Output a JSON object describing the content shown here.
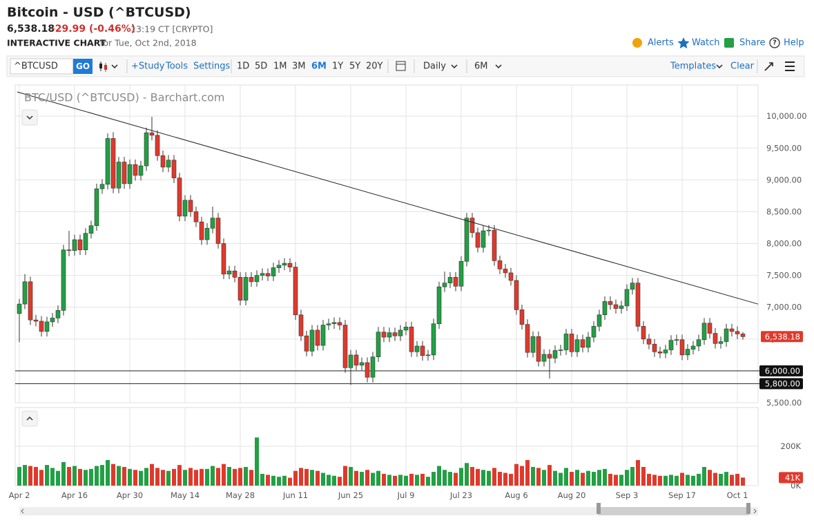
{
  "header": {
    "title": "Bitcoin - USD (^BTCUSD)",
    "last": "6,538.18",
    "change": "-29.99 (-0.46%)",
    "time": "13:19 CT [CRYPTO]",
    "label": "INTERACTIVE CHART",
    "date": "for Tue, Oct 2nd, 2018",
    "links": [
      "Alerts",
      "Watch",
      "Share",
      "Help"
    ]
  },
  "toolbar": {
    "symbol": "^BTCUSD",
    "go": "GO",
    "tools": [
      "+Study",
      "Tools",
      "Settings"
    ],
    "periods": [
      "1D",
      "5D",
      "1M",
      "3M",
      "6M",
      "1Y",
      "5Y",
      "20Y"
    ],
    "active_period": 4,
    "interval": "Daily",
    "range": "6M",
    "templates": "Templates",
    "clear": "Clear"
  },
  "chart_data": {
    "type": "candlestick",
    "title": "BTC/USD (^BTCUSD) - Barchart.com",
    "categories": [
      "Apr 2",
      null,
      null,
      null,
      null,
      null,
      null,
      null,
      null,
      null,
      "Apr 16",
      null,
      null,
      null,
      null,
      null,
      null,
      null,
      null,
      null,
      "Apr 30",
      null,
      null,
      null,
      null,
      null,
      null,
      null,
      null,
      null,
      "May 14",
      null,
      null,
      null,
      null,
      null,
      null,
      null,
      null,
      null,
      "May 28",
      null,
      null,
      null,
      null,
      null,
      null,
      null,
      null,
      null,
      "Jun 11",
      null,
      null,
      null,
      null,
      null,
      null,
      null,
      null,
      null,
      "Jun 25",
      null,
      null,
      null,
      null,
      null,
      null,
      null,
      null,
      null,
      "Jul 9",
      null,
      null,
      null,
      null,
      null,
      null,
      null,
      null,
      null,
      "Jul 23",
      null,
      null,
      null,
      null,
      null,
      null,
      null,
      null,
      null,
      "Aug 6",
      null,
      null,
      null,
      null,
      null,
      null,
      null,
      null,
      null,
      "Aug 20",
      null,
      null,
      null,
      null,
      null,
      null,
      null,
      null,
      null,
      "Sep 3",
      null,
      null,
      null,
      null,
      null,
      null,
      null,
      null,
      null,
      "Sep 17",
      null,
      null,
      null,
      null,
      null,
      null,
      null,
      null,
      null,
      "Oct 1",
      null
    ],
    "ohlc": [
      [
        6900,
        7130,
        6450,
        7050
      ],
      [
        7050,
        7520,
        6970,
        7400
      ],
      [
        7400,
        7480,
        6720,
        6800
      ],
      [
        6800,
        6880,
        6700,
        6780
      ],
      [
        6780,
        6860,
        6540,
        6620
      ],
      [
        6620,
        6850,
        6540,
        6770
      ],
      [
        6770,
        6910,
        6690,
        6830
      ],
      [
        6830,
        7030,
        6750,
        6950
      ],
      [
        6950,
        7980,
        6870,
        7900
      ],
      [
        7900,
        8200,
        7800,
        7890
      ],
      [
        7890,
        8140,
        7810,
        8060
      ],
      [
        8060,
        8140,
        7820,
        7900
      ],
      [
        7900,
        8240,
        7820,
        8160
      ],
      [
        8160,
        8360,
        8080,
        8280
      ],
      [
        8280,
        8940,
        8200,
        8860
      ],
      [
        8860,
        9010,
        8780,
        8930
      ],
      [
        8930,
        9730,
        8850,
        9650
      ],
      [
        9650,
        9750,
        8790,
        8870
      ],
      [
        8870,
        9360,
        8790,
        9280
      ],
      [
        9280,
        9360,
        8860,
        8940
      ],
      [
        8940,
        9320,
        8860,
        9240
      ],
      [
        9240,
        9320,
        8990,
        9070
      ],
      [
        9070,
        9300,
        8990,
        9220
      ],
      [
        9220,
        9820,
        9140,
        9740
      ],
      [
        9740,
        9990,
        9620,
        9700
      ],
      [
        9700,
        9780,
        9300,
        9380
      ],
      [
        9380,
        9460,
        9120,
        9200
      ],
      [
        9200,
        9390,
        9120,
        9310
      ],
      [
        9310,
        9390,
        8950,
        9030
      ],
      [
        9030,
        9110,
        8350,
        8430
      ],
      [
        8430,
        8760,
        8350,
        8680
      ],
      [
        8680,
        8760,
        8420,
        8500
      ],
      [
        8500,
        8580,
        8260,
        8340
      ],
      [
        8340,
        8420,
        7980,
        8060
      ],
      [
        8060,
        8320,
        7980,
        8240
      ],
      [
        8240,
        8580,
        8160,
        8400
      ],
      [
        8400,
        8480,
        7920,
        8000
      ],
      [
        8000,
        8080,
        7440,
        7520
      ],
      [
        7520,
        7650,
        7440,
        7570
      ],
      [
        7570,
        7650,
        7390,
        7470
      ],
      [
        7470,
        7550,
        7030,
        7110
      ],
      [
        7110,
        7550,
        7030,
        7470
      ],
      [
        7470,
        7550,
        7320,
        7400
      ],
      [
        7400,
        7580,
        7320,
        7500
      ],
      [
        7500,
        7610,
        7420,
        7530
      ],
      [
        7530,
        7610,
        7410,
        7490
      ],
      [
        7490,
        7700,
        7410,
        7620
      ],
      [
        7620,
        7740,
        7540,
        7660
      ],
      [
        7660,
        7770,
        7580,
        7690
      ],
      [
        7690,
        7770,
        7550,
        7630
      ],
      [
        7630,
        7710,
        6800,
        6880
      ],
      [
        6880,
        6960,
        6470,
        6550
      ],
      [
        6550,
        6630,
        6230,
        6310
      ],
      [
        6310,
        6720,
        6230,
        6640
      ],
      [
        6640,
        6720,
        6320,
        6400
      ],
      [
        6400,
        6800,
        6320,
        6720
      ],
      [
        6720,
        6820,
        6640,
        6740
      ],
      [
        6740,
        6840,
        6660,
        6760
      ],
      [
        6760,
        6840,
        6640,
        6720
      ],
      [
        6720,
        6800,
        5970,
        6050
      ],
      [
        6050,
        6330,
        5780,
        6250
      ],
      [
        6250,
        6330,
        6010,
        6090
      ],
      [
        6090,
        6210,
        6010,
        6130
      ],
      [
        6130,
        6210,
        5820,
        5900
      ],
      [
        5900,
        6300,
        5820,
        6220
      ],
      [
        6220,
        6690,
        6140,
        6610
      ],
      [
        6610,
        6690,
        6450,
        6530
      ],
      [
        6530,
        6680,
        6450,
        6600
      ],
      [
        6600,
        6680,
        6470,
        6550
      ],
      [
        6550,
        6720,
        6470,
        6640
      ],
      [
        6640,
        6770,
        6560,
        6690
      ],
      [
        6690,
        6770,
        6220,
        6300
      ],
      [
        6300,
        6470,
        6220,
        6390
      ],
      [
        6390,
        6470,
        6160,
        6240
      ],
      [
        6240,
        6330,
        6160,
        6250
      ],
      [
        6250,
        6820,
        6170,
        6740
      ],
      [
        6740,
        7400,
        6660,
        7320
      ],
      [
        7320,
        7560,
        7240,
        7380
      ],
      [
        7380,
        7550,
        7300,
        7470
      ],
      [
        7470,
        7550,
        7250,
        7330
      ],
      [
        7330,
        7800,
        7250,
        7720
      ],
      [
        7720,
        8480,
        7640,
        8400
      ],
      [
        8400,
        8480,
        8090,
        8170
      ],
      [
        8170,
        8250,
        7860,
        7940
      ],
      [
        7940,
        8280,
        7860,
        8200
      ],
      [
        8200,
        8290,
        8120,
        8210
      ],
      [
        8210,
        8290,
        7650,
        7730
      ],
      [
        7730,
        7810,
        7520,
        7600
      ],
      [
        7600,
        7680,
        7460,
        7540
      ],
      [
        7540,
        7620,
        7340,
        7420
      ],
      [
        7420,
        7500,
        6880,
        6960
      ],
      [
        6960,
        7040,
        6650,
        6730
      ],
      [
        6730,
        6810,
        6210,
        6290
      ],
      [
        6290,
        6620,
        6210,
        6540
      ],
      [
        6540,
        6620,
        6070,
        6150
      ],
      [
        6150,
        6340,
        6070,
        6260
      ],
      [
        6260,
        6340,
        5880,
        6200
      ],
      [
        6200,
        6400,
        6120,
        6320
      ],
      [
        6320,
        6410,
        6240,
        6330
      ],
      [
        6330,
        6660,
        6250,
        6580
      ],
      [
        6580,
        6660,
        6220,
        6300
      ],
      [
        6300,
        6570,
        6220,
        6490
      ],
      [
        6490,
        6570,
        6290,
        6370
      ],
      [
        6370,
        6610,
        6290,
        6530
      ],
      [
        6530,
        6780,
        6450,
        6700
      ],
      [
        6700,
        6960,
        6620,
        6880
      ],
      [
        6880,
        7170,
        6800,
        7090
      ],
      [
        7090,
        7170,
        6960,
        7040
      ],
      [
        7040,
        7120,
        6900,
        6980
      ],
      [
        6980,
        7100,
        6900,
        7020
      ],
      [
        7020,
        7360,
        6940,
        7280
      ],
      [
        7280,
        7460,
        7200,
        7380
      ],
      [
        7380,
        7460,
        6620,
        6700
      ],
      [
        6700,
        6780,
        6420,
        6500
      ],
      [
        6500,
        6580,
        6340,
        6420
      ],
      [
        6420,
        6500,
        6220,
        6300
      ],
      [
        6300,
        6380,
        6200,
        6280
      ],
      [
        6280,
        6410,
        6200,
        6330
      ],
      [
        6330,
        6560,
        6250,
        6480
      ],
      [
        6480,
        6570,
        6400,
        6490
      ],
      [
        6490,
        6570,
        6170,
        6250
      ],
      [
        6250,
        6420,
        6170,
        6340
      ],
      [
        6340,
        6470,
        6260,
        6390
      ],
      [
        6390,
        6570,
        6310,
        6490
      ],
      [
        6490,
        6830,
        6410,
        6750
      ],
      [
        6750,
        6830,
        6510,
        6590
      ],
      [
        6590,
        6670,
        6350,
        6430
      ],
      [
        6430,
        6540,
        6350,
        6460
      ],
      [
        6460,
        6740,
        6380,
        6660
      ],
      [
        6660,
        6740,
        6540,
        6620
      ],
      [
        6620,
        6700,
        6500,
        6580
      ],
      [
        6580,
        6610,
        6490,
        6538.18
      ]
    ],
    "up_color": "#21a044",
    "down_color": "#e0392b",
    "ylim": [
      5500,
      10490
    ],
    "yticks": [
      {
        "value": 5500,
        "label": "5,500.00"
      },
      {
        "value": 6000,
        "label": "6,000.00"
      },
      {
        "value": 6500,
        "label": "6,500.00"
      },
      {
        "value": 7000,
        "label": "7,000.00"
      },
      {
        "value": 7500,
        "label": "7,500.00"
      },
      {
        "value": 8000,
        "label": "8,000.00"
      },
      {
        "value": 8500,
        "label": "8,500.00"
      },
      {
        "value": 9000,
        "label": "9,000.00"
      },
      {
        "value": 9500,
        "label": "9,500.00"
      },
      {
        "value": 10000,
        "label": "10,000.00"
      }
    ],
    "grid": true,
    "last_label": "6,538.18",
    "hlines": [
      {
        "value": 6000,
        "label": "6,000.00"
      },
      {
        "value": 5800,
        "label": "5,800.00"
      }
    ],
    "trendline": {
      "x": [
        -0.375,
        133.75
      ],
      "y": [
        10380,
        7049
      ]
    },
    "volume": {
      "values": [
        95000,
        105000,
        100000,
        95000,
        80000,
        105000,
        90000,
        75000,
        120000,
        95000,
        100000,
        85000,
        80000,
        85000,
        100000,
        105000,
        130000,
        110000,
        100000,
        95000,
        85000,
        80000,
        75000,
        90000,
        110000,
        90000,
        80000,
        75000,
        85000,
        105000,
        80000,
        90000,
        80000,
        85000,
        85000,
        100000,
        90000,
        110000,
        95000,
        85000,
        90000,
        95000,
        80000,
        245000,
        60000,
        55000,
        50000,
        45000,
        50000,
        40000,
        75000,
        90000,
        85000,
        80000,
        75000,
        65000,
        55000,
        50000,
        45000,
        100000,
        95000,
        75000,
        70000,
        80000,
        65000,
        75000,
        60000,
        55000,
        50000,
        55000,
        50000,
        60000,
        55000,
        60000,
        45000,
        70000,
        100000,
        80000,
        70000,
        65000,
        90000,
        115000,
        95000,
        85000,
        80000,
        75000,
        90000,
        70000,
        65000,
        60000,
        110000,
        100000,
        130000,
        95000,
        90000,
        80000,
        105000,
        75000,
        65000,
        90000,
        70000,
        80000,
        65000,
        75000,
        70000,
        80000,
        85000,
        60000,
        55000,
        55000,
        80000,
        95000,
        130000,
        95000,
        60000,
        55000,
        50000,
        50000,
        55000,
        50000,
        65000,
        55000,
        50000,
        60000,
        95000,
        80000,
        65000,
        60000,
        70000,
        55000,
        60000,
        41000
      ],
      "ylim": [
        0,
        390000
      ],
      "yticks": [
        {
          "value": 0,
          "label": "0K"
        },
        {
          "value": 200000,
          "label": "200K"
        }
      ],
      "last_label": "41K"
    }
  }
}
